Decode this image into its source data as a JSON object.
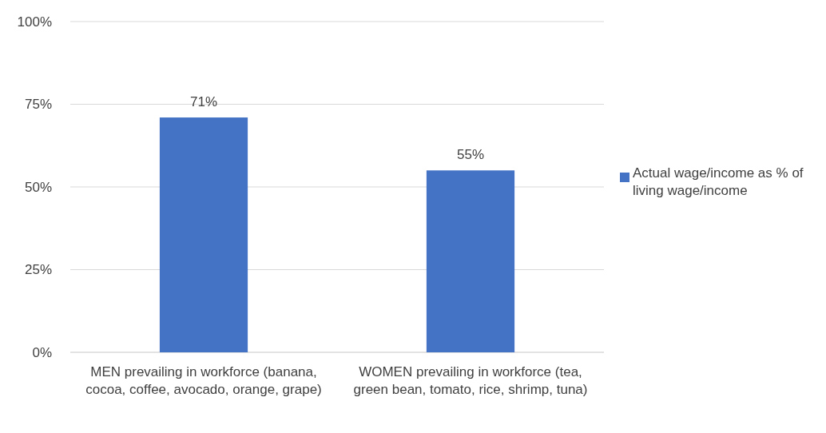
{
  "chart_data": {
    "type": "bar",
    "categories": [
      "MEN prevailing in workforce (banana, cocoa, coffee, avocado, orange, grape)",
      "WOMEN prevailing in workforce (tea, green bean, tomato, rice, shrimp, tuna)"
    ],
    "series": [
      {
        "name": "Actual wage/income as % of living wage/income",
        "color": "#4472c4",
        "values": [
          71,
          55
        ],
        "value_labels": [
          "71%",
          "55%"
        ]
      }
    ],
    "ylim": [
      0,
      100
    ],
    "yticks": [
      {
        "value": 0,
        "label": "0%"
      },
      {
        "value": 25,
        "label": "25%"
      },
      {
        "value": 50,
        "label": "50%"
      },
      {
        "value": 75,
        "label": "75%"
      },
      {
        "value": 100,
        "label": "100%"
      }
    ],
    "grid": "y",
    "legend": "right"
  }
}
